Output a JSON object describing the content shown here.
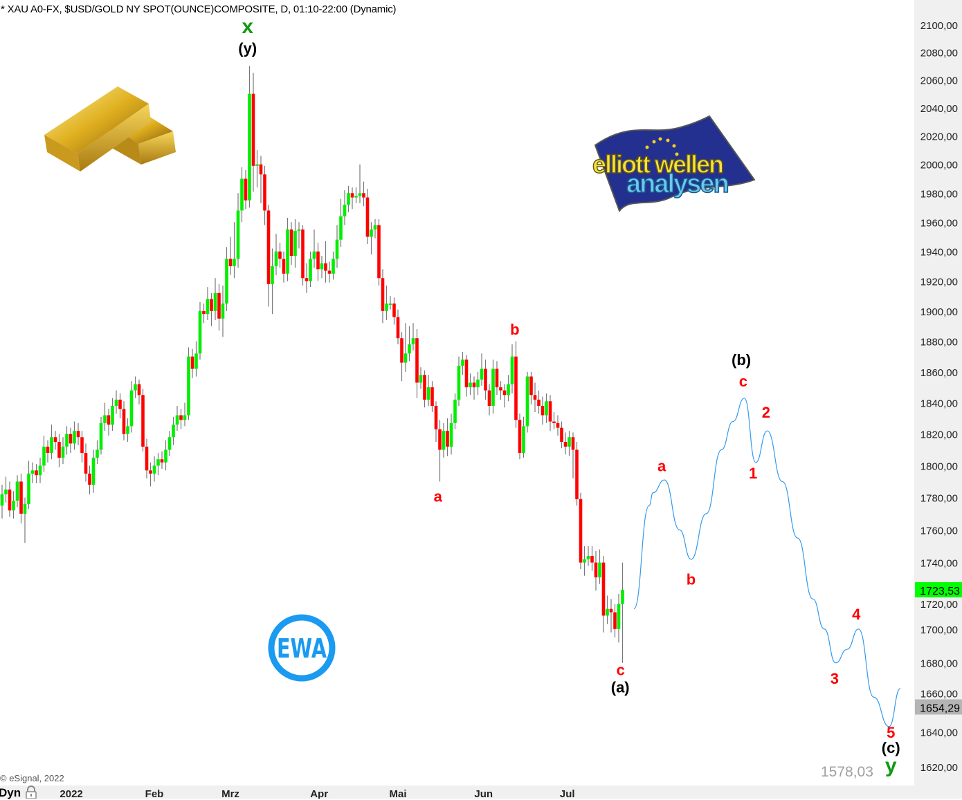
{
  "header": {
    "title": "* XAU A0-FX, $USD/GOLD NY SPOT(OUNCE)COMPOSITE, D, 01:10-22:00 (Dynamic)"
  },
  "copyright": "© eSignal, 2022",
  "footer": {
    "mode": "Dyn",
    "lock_icon": "lock-icon"
  },
  "logos": {
    "gold_bars": "gold-bars-image",
    "elliott": {
      "line1": "elliott wellen",
      "line2": "analysen"
    },
    "ewa": "EWA"
  },
  "colors": {
    "up": "#00ee00",
    "down": "#ff0000",
    "wick": "#777777",
    "projection": "#3399ee",
    "label_red": "#ff0000",
    "label_green": "#119911",
    "label_black": "#000000",
    "last_price_bg": "#00ff00",
    "marker_bg": "#b4b4b4"
  },
  "chart_data": {
    "type": "candlestick",
    "y_scale": "log",
    "ylim": [
      1600,
      2115
    ],
    "yticks": [
      1620,
      1640,
      1660,
      1680,
      1700,
      1720,
      1740,
      1760,
      1780,
      1800,
      1820,
      1840,
      1860,
      1880,
      1900,
      1920,
      1940,
      1960,
      1980,
      2000,
      2020,
      2040,
      2060,
      2080,
      2100
    ],
    "xticks": [
      {
        "label": "2022",
        "index": 18.2
      },
      {
        "label": "Feb",
        "index": 40
      },
      {
        "label": "Mrz",
        "index": 60
      },
      {
        "label": "Apr",
        "index": 83.3
      },
      {
        "label": "Mai",
        "index": 104
      },
      {
        "label": "Jun",
        "index": 126.5
      },
      {
        "label": "Jul",
        "index": 148.5
      }
    ],
    "first_open": 1775,
    "close": [
      1782,
      1785,
      1772,
      1778,
      1790,
      1770,
      1776,
      1795,
      1797,
      1794,
      1800,
      1812,
      1808,
      1818,
      1815,
      1805,
      1812,
      1820,
      1814,
      1822,
      1818,
      1808,
      1795,
      1788,
      1805,
      1810,
      1827,
      1832,
      1826,
      1838,
      1842,
      1836,
      1820,
      1825,
      1848,
      1852,
      1845,
      1812,
      1797,
      1795,
      1800,
      1804,
      1802,
      1810,
      1818,
      1826,
      1832,
      1829,
      1832,
      1870,
      1862,
      1872,
      1900,
      1898,
      1908,
      1900,
      1912,
      1895,
      1905,
      1935,
      1930,
      1935,
      1968,
      1990,
      1975,
      2050,
      1999,
      2000,
      1993,
      1968,
      1918,
      1930,
      1940,
      1935,
      1925,
      1955,
      1937,
      1954,
      1955,
      1922,
      1920,
      1935,
      1940,
      1928,
      1932,
      1927,
      1925,
      1935,
      1948,
      1964,
      1972,
      1980,
      1977,
      1978,
      1980,
      1977,
      1950,
      1955,
      1958,
      1922,
      1900,
      1905,
      1905,
      1896,
      1882,
      1866,
      1872,
      1878,
      1882,
      1853,
      1858,
      1842,
      1850,
      1838,
      1823,
      1810,
      1822,
      1812,
      1827,
      1842,
      1864,
      1868,
      1850,
      1853,
      1850,
      1855,
      1862,
      1848,
      1838,
      1862,
      1850,
      1848,
      1845,
      1852,
      1870,
      1829,
      1808,
      1825,
      1857,
      1845,
      1842,
      1838,
      1832,
      1841,
      1828,
      1827,
      1824,
      1815,
      1812,
      1818,
      1810,
      1779,
      1740,
      1742,
      1744,
      1740,
      1731,
      1740,
      1708,
      1712,
      1710,
      1700,
      1715,
      1723.53
    ],
    "high": [
      1788,
      1793,
      1790,
      1784,
      1794,
      1795,
      1780,
      1803,
      1802,
      1801,
      1805,
      1819,
      1816,
      1826,
      1822,
      1820,
      1818,
      1825,
      1824,
      1828,
      1827,
      1822,
      1814,
      1800,
      1810,
      1816,
      1831,
      1840,
      1836,
      1843,
      1848,
      1846,
      1841,
      1830,
      1854,
      1857,
      1855,
      1849,
      1817,
      1802,
      1806,
      1808,
      1809,
      1816,
      1822,
      1831,
      1838,
      1836,
      1840,
      1876,
      1875,
      1880,
      1906,
      1905,
      1916,
      1912,
      1922,
      1918,
      1917,
      1943,
      1950,
      1960,
      1980,
      1998,
      1996,
      2070,
      2065,
      2010,
      2006,
      1999,
      1972,
      1942,
      1952,
      1946,
      1940,
      1963,
      1960,
      1962,
      1960,
      1958,
      1932,
      1940,
      1955,
      1946,
      1937,
      1947,
      1933,
      1940,
      1958,
      1976,
      1982,
      1985,
      1984,
      1984,
      2000,
      1988,
      1983,
      1960,
      1962,
      1962,
      1928,
      1917,
      1910,
      1909,
      1901,
      1886,
      1892,
      1890,
      1892,
      1888,
      1863,
      1861,
      1858,
      1854,
      1841,
      1829,
      1827,
      1830,
      1833,
      1846,
      1870,
      1873,
      1871,
      1859,
      1857,
      1860,
      1872,
      1868,
      1852,
      1868,
      1867,
      1854,
      1852,
      1858,
      1878,
      1880,
      1833,
      1831,
      1860,
      1860,
      1853,
      1848,
      1844,
      1846,
      1845,
      1834,
      1832,
      1828,
      1821,
      1822,
      1821,
      1815,
      1783,
      1750,
      1750,
      1750,
      1747,
      1748,
      1744,
      1720,
      1718,
      1715,
      1721,
      1740
    ],
    "low": [
      1767,
      1777,
      1768,
      1767,
      1774,
      1764,
      1752,
      1773,
      1789,
      1789,
      1789,
      1796,
      1802,
      1804,
      1810,
      1799,
      1801,
      1807,
      1808,
      1810,
      1813,
      1802,
      1790,
      1782,
      1783,
      1801,
      1807,
      1822,
      1819,
      1822,
      1833,
      1830,
      1816,
      1815,
      1821,
      1843,
      1839,
      1809,
      1792,
      1787,
      1790,
      1794,
      1798,
      1797,
      1806,
      1813,
      1822,
      1823,
      1825,
      1829,
      1856,
      1857,
      1868,
      1892,
      1894,
      1890,
      1894,
      1887,
      1883,
      1900,
      1924,
      1922,
      1929,
      1960,
      1969,
      1970,
      1981,
      1984,
      1973,
      1958,
      1903,
      1898,
      1924,
      1929,
      1919,
      1920,
      1931,
      1929,
      1942,
      1917,
      1912,
      1916,
      1929,
      1920,
      1922,
      1919,
      1919,
      1921,
      1929,
      1943,
      1958,
      1967,
      1969,
      1973,
      1973,
      1971,
      1945,
      1938,
      1949,
      1917,
      1892,
      1894,
      1901,
      1891,
      1878,
      1854,
      1860,
      1867,
      1874,
      1843,
      1849,
      1837,
      1838,
      1834,
      1815,
      1790,
      1805,
      1806,
      1807,
      1823,
      1838,
      1858,
      1844,
      1845,
      1842,
      1845,
      1851,
      1842,
      1832,
      1833,
      1845,
      1842,
      1837,
      1841,
      1846,
      1824,
      1804,
      1805,
      1821,
      1839,
      1834,
      1833,
      1826,
      1827,
      1822,
      1823,
      1819,
      1811,
      1807,
      1806,
      1792,
      1775,
      1736,
      1732,
      1738,
      1735,
      1723,
      1727,
      1698,
      1703,
      1698,
      1695,
      1692,
      1680
    ],
    "projection": {
      "index": [
        166,
        170,
        171,
        174,
        178,
        181,
        185,
        189,
        192,
        195,
        198,
        201,
        205,
        209,
        213,
        216,
        219,
        222,
        225,
        229,
        233,
        236
      ],
      "price": [
        1712,
        1775,
        1783,
        1791,
        1760,
        1742,
        1770,
        1810,
        1828,
        1843,
        1802,
        1822,
        1790,
        1755,
        1718,
        1700,
        1680,
        1688,
        1700,
        1660,
        1643,
        1665
      ]
    },
    "annotations": [
      {
        "text": "x",
        "index": 64.5,
        "price": 2098,
        "color": "green"
      },
      {
        "text": "(y)",
        "index": 64.5,
        "price": 2083,
        "color": "black"
      },
      {
        "text": "a",
        "index": 114.5,
        "price": 1781,
        "color": "red"
      },
      {
        "text": "b",
        "index": 134.7,
        "price": 1888,
        "color": "red"
      },
      {
        "text": "c",
        "index": 162.5,
        "price": 1676,
        "color": "red"
      },
      {
        "text": "(a)",
        "index": 162.4,
        "price": 1666,
        "color": "black"
      },
      {
        "text": "a",
        "index": 173.3,
        "price": 1800,
        "color": "red"
      },
      {
        "text": "b",
        "index": 181,
        "price": 1730,
        "color": "red"
      },
      {
        "text": "(b)",
        "index": 194.2,
        "price": 1868,
        "color": "black"
      },
      {
        "text": "c",
        "index": 194.7,
        "price": 1854,
        "color": "red"
      },
      {
        "text": "1",
        "index": 197.3,
        "price": 1795.5,
        "color": "red"
      },
      {
        "text": "2",
        "index": 200.7,
        "price": 1834,
        "color": "red"
      },
      {
        "text": "3",
        "index": 218.7,
        "price": 1671,
        "color": "red"
      },
      {
        "text": "4",
        "index": 224.4,
        "price": 1709,
        "color": "red"
      },
      {
        "text": "5",
        "index": 233.5,
        "price": 1636,
        "color": "red"
      },
      {
        "text": "(c)",
        "index": 233.5,
        "price": 1629,
        "color": "black"
      },
      {
        "text": "y",
        "index": 233.5,
        "price": 1620,
        "color": "green"
      }
    ],
    "last_price": {
      "value": 1723.53,
      "label": "1723,53"
    },
    "marker_price": {
      "value": 1654.29,
      "label": "1654,29"
    },
    "target_text": {
      "value": 1578.03,
      "label": "1578,03"
    }
  }
}
